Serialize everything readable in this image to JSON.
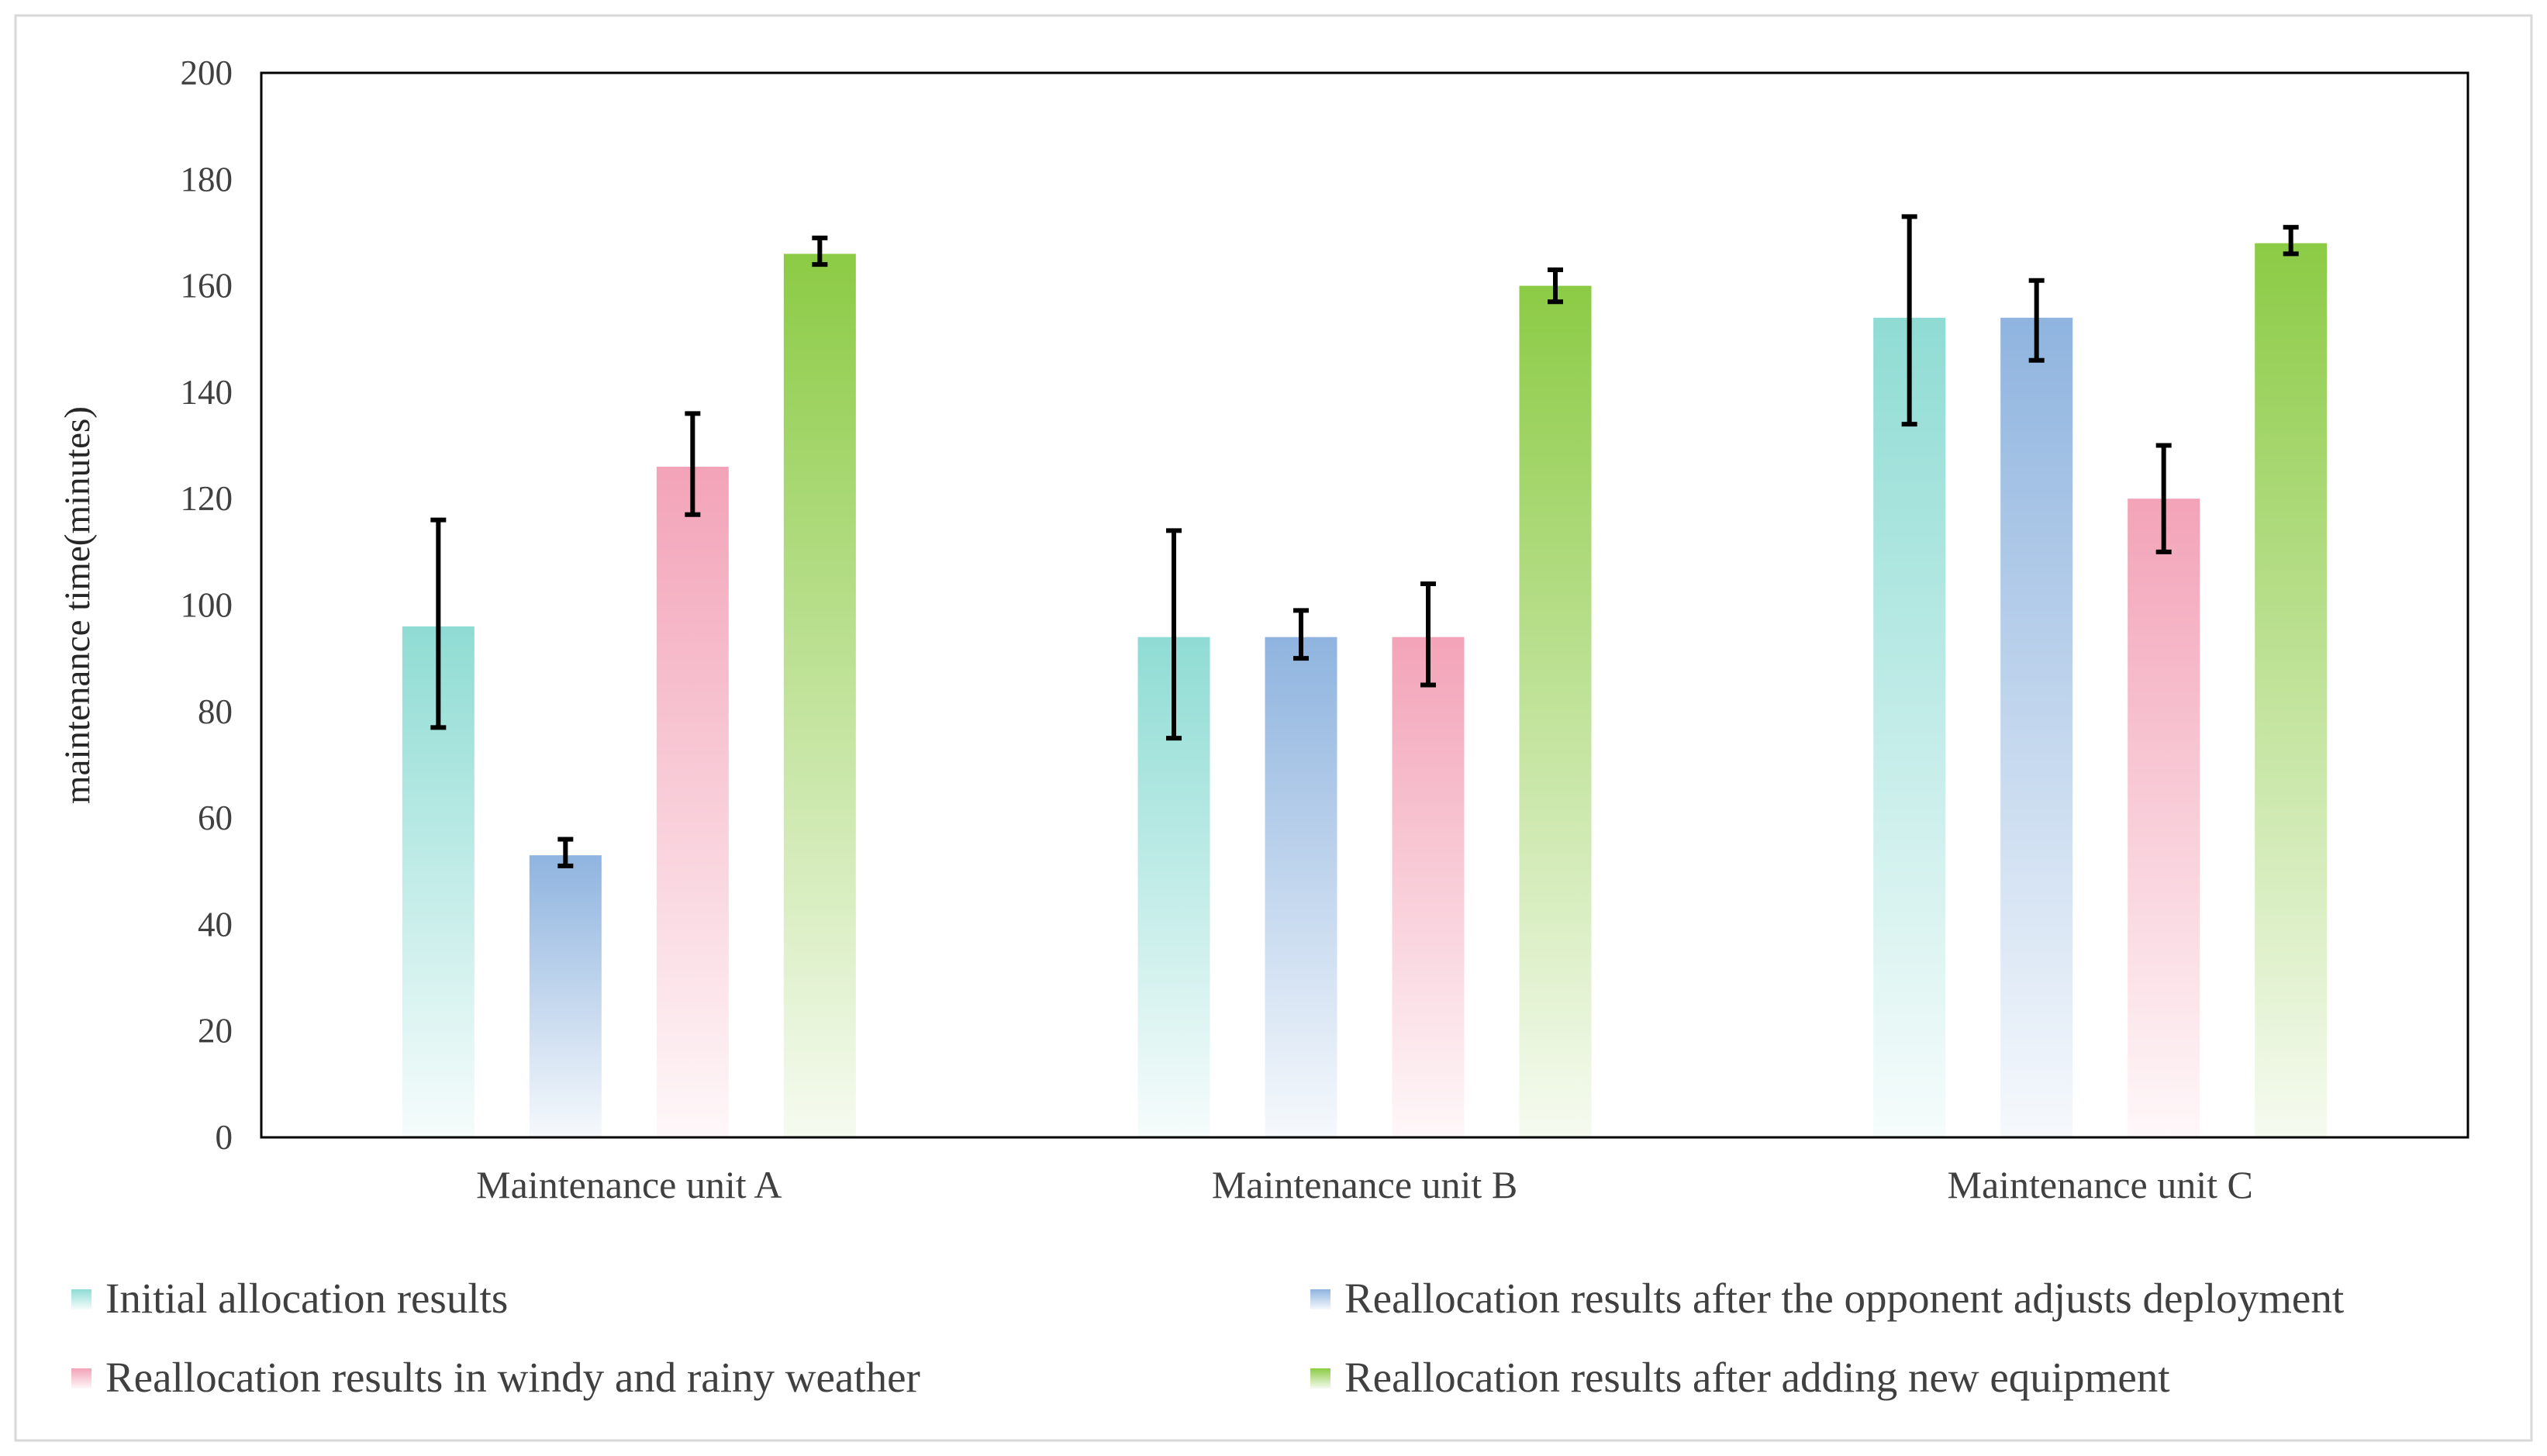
{
  "chart_data": {
    "type": "bar",
    "title": "",
    "xlabel": "",
    "ylabel": "maintenance time(minutes)",
    "ylim": [
      0,
      200
    ],
    "yticks": [
      0,
      20,
      40,
      60,
      80,
      100,
      120,
      140,
      160,
      180,
      200
    ],
    "grid": false,
    "legend_position": "bottom",
    "categories": [
      "Maintenance unit A",
      "Maintenance unit B",
      "Maintenance unit C"
    ],
    "series": [
      {
        "name": "Initial allocation results",
        "color": "#8fdcd4",
        "values": [
          96,
          94,
          154
        ],
        "error_low": [
          77,
          75,
          134
        ],
        "error_high": [
          116,
          114,
          173
        ]
      },
      {
        "name": "Reallocation results after the opponent adjusts deployment",
        "color": "#8fb4df",
        "values": [
          53,
          94,
          154
        ],
        "error_low": [
          51,
          90,
          146
        ],
        "error_high": [
          56,
          99,
          161
        ]
      },
      {
        "name": "Reallocation results in windy and rainy weather",
        "color": "#f3a3b8",
        "values": [
          126,
          94,
          120
        ],
        "error_low": [
          117,
          85,
          110
        ],
        "error_high": [
          136,
          104,
          130
        ]
      },
      {
        "name": "Reallocation results after adding new equipment",
        "color": "#8ccb45",
        "values": [
          166,
          160,
          168
        ],
        "error_low": [
          164,
          157,
          166
        ],
        "error_high": [
          169,
          163,
          171
        ]
      }
    ]
  }
}
